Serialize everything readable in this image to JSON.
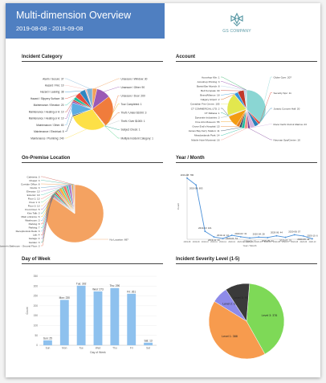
{
  "report": {
    "title": "Multi-dimension Overview",
    "date_range": "2019-08-08 - 2019-09-08",
    "logo_text": "GS COMPANY"
  },
  "sections": {
    "incident_category": "Incident Category",
    "account": "Account",
    "on_premise_location": "On-Premise Location",
    "year_month": "Year / Month",
    "day_of_week": "Day of Week",
    "severity": "Incident Severity Level (1-5)"
  },
  "chart_data": [
    {
      "type": "pie",
      "title": "Incident Category",
      "slices": [
        {
          "label": "Unsecure / Window: 30",
          "value": 30,
          "color": "#f2a05a"
        },
        {
          "label": "Unsecure / Other: 90",
          "value": 90,
          "color": "#9b59b6"
        },
        {
          "label": "Unsecure / Door: 200",
          "value": 200,
          "color": "#f07c3c"
        },
        {
          "label": "Tour Completed: 1",
          "value": 1,
          "color": "#e8b000"
        },
        {
          "label": "Theft / Under $1000: 3",
          "value": 3,
          "color": "#d35400"
        },
        {
          "label": "Theft / Over $1000: 1",
          "value": 1,
          "color": "#bdc3c7"
        },
        {
          "label": "Subject Check: 1",
          "value": 1,
          "color": "#16a085"
        },
        {
          "label": "Multiple Incident Category: 1",
          "value": 1,
          "color": "#2ecc71"
        },
        {
          "label": "Maintenance / Plumbing: 240",
          "value": 240,
          "color": "#fde047"
        },
        {
          "label": "Maintenance / Electrical: 8",
          "value": 8,
          "color": "#34495e"
        },
        {
          "label": "Maintenance / Other: 80",
          "value": 80,
          "color": "#5dade2"
        },
        {
          "label": "Maintenance / Heating or A: 10",
          "value": 10,
          "color": "#8e44ad"
        },
        {
          "label": "Maintenance / Heating or A: 10",
          "value": 10,
          "color": "#c0392b"
        },
        {
          "label": "Maintenance / Elevator: 20",
          "value": 20,
          "color": "#1abc9c"
        },
        {
          "label": "Hazard / Slippery Surface: 38",
          "value": 38,
          "color": "#e74c3c"
        },
        {
          "label": "Hazard / Leaking: 38",
          "value": 38,
          "color": "#2e86c1"
        },
        {
          "label": "Hazard / Fire: 10",
          "value": 10,
          "color": "#f5b7b1"
        },
        {
          "label": "Alarm / Secure: 37",
          "value": 37,
          "color": "#7fb3d5"
        }
      ]
    },
    {
      "type": "pie",
      "title": "Account",
      "slices": [
        {
          "label": "Globe Gym: 207",
          "value": 207,
          "color": "#8ad6d3"
        },
        {
          "label": "Security Spc: 11",
          "value": 11,
          "color": "#e74c3c"
        },
        {
          "label": "Jurasic Concert Hall: 20",
          "value": 20,
          "color": "#2980b9"
        },
        {
          "label": "Roca Yacht Club & Marina: 23",
          "value": 23,
          "color": "#d2b4de"
        },
        {
          "label": "Neuman Spa/Center: 10",
          "value": 10,
          "color": "#7d3c98"
        },
        {
          "label": "Mobile Hotel Montreal: 16",
          "value": 16,
          "color": "#f1948a"
        },
        {
          "label": "Meadowlands Park: 14",
          "value": 14,
          "color": "#1abc9c"
        },
        {
          "label": "James Bay Ferry Station: 11",
          "value": 11,
          "color": "#34495e"
        },
        {
          "label": "Grove End's Hospital: 15",
          "value": 15,
          "color": "#e67e22"
        },
        {
          "label": "Fine Arts Museum: 55",
          "value": 55,
          "color": "#f39c12"
        },
        {
          "label": "Dynamite Industries: 3",
          "value": 3,
          "color": "#95a5a6"
        },
        {
          "label": "CT Ridiana: 1",
          "value": 1,
          "color": "#16a085"
        },
        {
          "label": "CT COMMERCIAL LTD: 2",
          "value": 2,
          "color": "#2c3e50"
        },
        {
          "label": "Canadian Fire Centre: 105",
          "value": 105,
          "color": "#e2e74e"
        },
        {
          "label": "Calgary Airport: 2",
          "value": 2,
          "color": "#d35400"
        },
        {
          "label": "BrandAlliance: 18",
          "value": 18,
          "color": "#3498db"
        },
        {
          "label": "Bell Kompaia: 30",
          "value": 30,
          "color": "#c0392b"
        },
        {
          "label": "Baristi Bar Munich: 8",
          "value": 8,
          "color": "#a9cce3"
        },
        {
          "label": "Acroshop Printing: 3",
          "value": 3,
          "color": "#8e44ad"
        },
        {
          "label": "Acroshop Kiln: 1",
          "value": 1,
          "color": "#27ae60"
        }
      ]
    },
    {
      "type": "pie",
      "title": "On-Premise Location",
      "slices": [
        {
          "label": "No Location: 697",
          "value": 697,
          "color": "#f4a261"
        },
        {
          "label": "Women's Bathroom - Ground Floor: 3",
          "value": 3,
          "color": "#e76f51"
        },
        {
          "label": "Garden: 3",
          "value": 3,
          "color": "#2a9d8f"
        },
        {
          "label": "Garage: 4",
          "value": 4,
          "color": "#9b59b6"
        },
        {
          "label": "Lab: 4",
          "value": 4,
          "color": "#c0392b"
        },
        {
          "label": "Receptionists Desk: 3",
          "value": 3,
          "color": "#5dade2"
        },
        {
          "label": "Parking: 7",
          "value": 7,
          "color": "#1abc9c"
        },
        {
          "label": "Parking: 8",
          "value": 8,
          "color": "#e74c3c"
        },
        {
          "label": "Washroom: 3",
          "value": 3,
          "color": "#3498db"
        },
        {
          "label": "Main entrance: 6",
          "value": 6,
          "color": "#f1c40f"
        },
        {
          "label": "Kiss Talk: 3",
          "value": 3,
          "color": "#16a085"
        },
        {
          "label": "Front Door: 5",
          "value": 5,
          "color": "#8e44ad"
        },
        {
          "label": "Floor 3: 13",
          "value": 13,
          "color": "#f5b041"
        },
        {
          "label": "Floor 1: 9",
          "value": 9,
          "color": "#58d68d"
        },
        {
          "label": "Floor 1: 13",
          "value": 13,
          "color": "#ec7063"
        },
        {
          "label": "Exterior: 10",
          "value": 10,
          "color": "#48c9b0"
        },
        {
          "label": "Elevator: 13",
          "value": 13,
          "color": "#af7ac5"
        },
        {
          "label": "Docks: 3",
          "value": 3,
          "color": "#5499c7"
        },
        {
          "label": "Corridor Office: 8",
          "value": 8,
          "color": "#eb984e"
        },
        {
          "label": "Chapel: 3",
          "value": 3,
          "color": "#45b39d"
        },
        {
          "label": "Cafeteria: 3",
          "value": 3,
          "color": "#cd6155"
        }
      ]
    },
    {
      "type": "line",
      "title": "Year / Month",
      "ylabel": "Count",
      "xlabel": "Year / Month",
      "ylim": [
        0,
        840
      ],
      "x": [
        "2019-08",
        "2019-09",
        "2019-10",
        "2019-11",
        "2019-12",
        "2020-01",
        "2020-02",
        "2020-03",
        "2020-04",
        "2020-05",
        "2020-06",
        "2020-07",
        "2020-08",
        "2020-09",
        "2020-10"
      ],
      "values": [
        780,
        693,
        101,
        30,
        10,
        51,
        31,
        17,
        28,
        22,
        44,
        25,
        57,
        42,
        6
      ],
      "data_labels": [
        "2019-08: 780",
        "2019-09: 693",
        "2019-10: 101",
        "2019-11: 30",
        "2019-12: 10",
        "2020-01: 51",
        "2020-02: 31",
        "2020-03: 17",
        "2020-04: 28",
        "2020-05: 22",
        "2020-06: 44",
        "2020-07: 25",
        "2020-08: 57",
        "2020-09: 42",
        "2020-10: 6"
      ],
      "color": "#4a90d9"
    },
    {
      "type": "bar",
      "title": "Day of Week",
      "xlabel": "Day of Week",
      "ylabel": "Count",
      "ylim": [
        0,
        350
      ],
      "yticks": [
        0,
        50,
        100,
        150,
        200,
        250,
        300,
        350
      ],
      "categories": [
        "Sun",
        "Mon",
        "Tue",
        "Wed",
        "Thu",
        "Fri",
        "Sat"
      ],
      "values": [
        25,
        230,
        302,
        273,
        290,
        261,
        13
      ],
      "data_labels": [
        "Sun: 25",
        "Mon: 230",
        "Tue: 302",
        "Wed: 273",
        "Thu: 290",
        "Fri: 261",
        "Sat: 13"
      ],
      "color": "#8ec1ee"
    },
    {
      "type": "pie",
      "title": "Incident Severity Level (1-5)",
      "slices": [
        {
          "label": "Level 3: 376",
          "value": 376,
          "color": "#7ed957"
        },
        {
          "label": "Level 1: 388",
          "value": 388,
          "color": "#f79b4e"
        },
        {
          "label": "Level 2: 65",
          "value": 65,
          "color": "#8e8be9"
        },
        {
          "label": "Level 5: 97",
          "value": 97,
          "color": "#3a3a3a"
        }
      ]
    }
  ]
}
